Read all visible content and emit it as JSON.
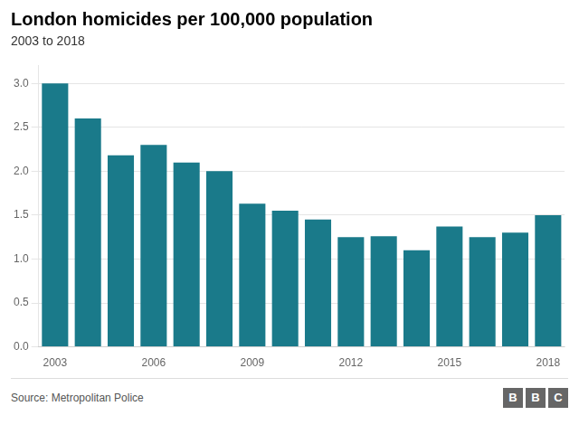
{
  "chart_data": {
    "type": "bar",
    "title": "London homicides per 100,000 population",
    "subtitle": "2003 to 2018",
    "categories": [
      "2003",
      null,
      null,
      "2006",
      null,
      null,
      "2009",
      null,
      null,
      "2012",
      null,
      null,
      "2015",
      null,
      null,
      "2018"
    ],
    "values": [
      3.0,
      2.6,
      2.18,
      2.3,
      2.1,
      2.0,
      1.63,
      1.55,
      1.45,
      1.25,
      1.26,
      1.1,
      1.37,
      1.25,
      1.3,
      1.5
    ],
    "color": "#1a7a8a",
    "ylim": [
      0,
      3.2
    ],
    "yticks": [
      {
        "value": 0,
        "label": "0.0"
      },
      0.5,
      {
        "value": 1,
        "label": "1.0"
      },
      1.5,
      {
        "value": 2,
        "label": "2.0"
      },
      2.5,
      {
        "value": 3,
        "label": "3.0"
      }
    ],
    "grid": true,
    "source": "Source: Metropolitan Police",
    "logo": "BBC"
  }
}
